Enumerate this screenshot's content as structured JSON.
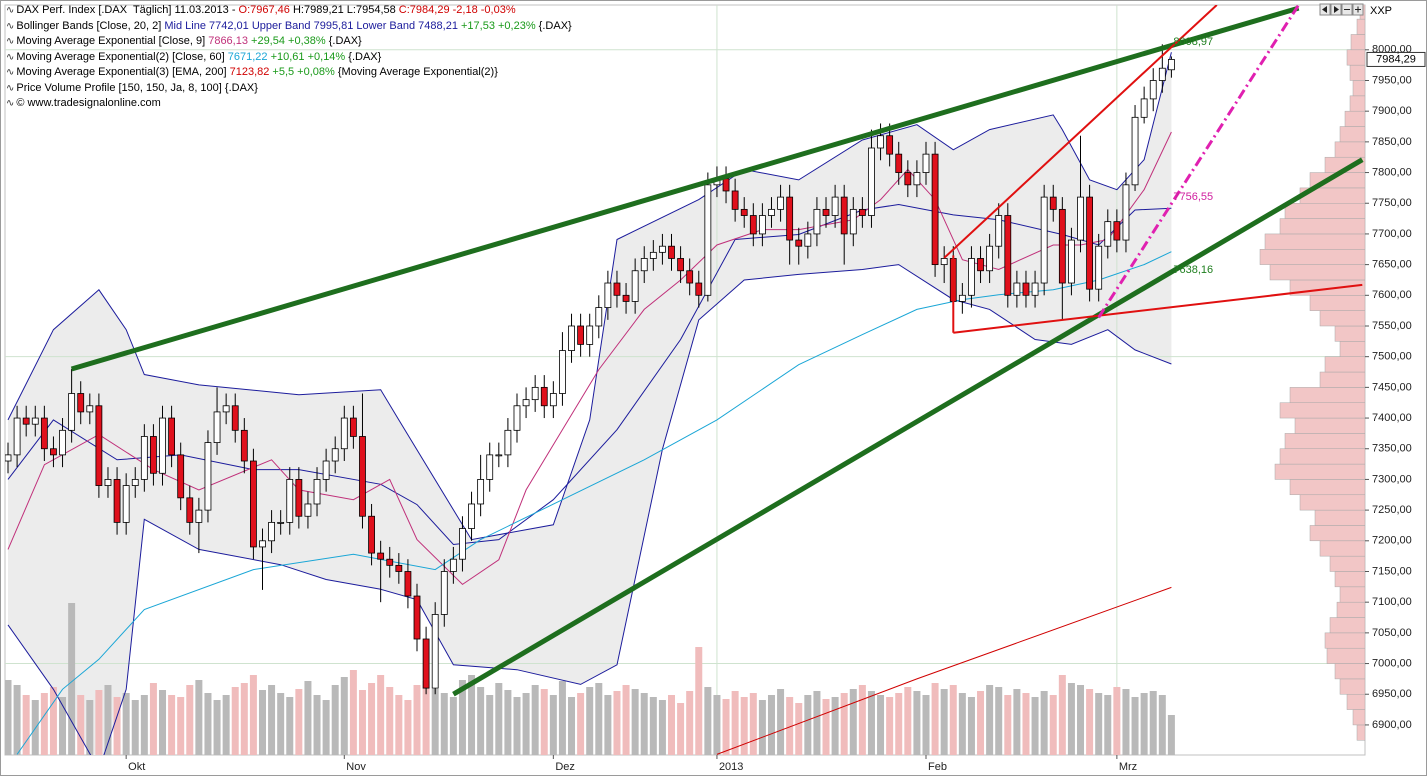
{
  "chart_data": {
    "type": "candlestick",
    "symbol": "XXP",
    "header": [
      [
        {
          "text": "DAX Perf. Index [.DAX  Täglich] 11.03.2013 - ",
          "color": "#000000"
        },
        {
          "text": "O:7967,46 ",
          "color": "#d00000"
        },
        {
          "text": "H:7989,21 L:7954,58 ",
          "color": "#000000"
        },
        {
          "text": "C:7984,29 -2,18 -0,03%",
          "color": "#d00000"
        }
      ],
      [
        {
          "text": "Bollinger Bands [Close, 20, 2] ",
          "color": "#000000"
        },
        {
          "text": "Mid Line 7742,01 Upper Band 7995,81 Lower Band 7488,21",
          "color": "#1c1c9c"
        },
        {
          "text": " +17,53 +0,23%",
          "color": "#1a9a1a"
        },
        {
          "text": " {.DAX}",
          "color": "#000000"
        }
      ],
      [
        {
          "text": "Moving Average Exponential [Close, 9] ",
          "color": "#000000"
        },
        {
          "text": "7866,13",
          "color": "#c0307a"
        },
        {
          "text": " +29,54 +0,38%",
          "color": "#1a9a1a"
        },
        {
          "text": " {.DAX}",
          "color": "#000000"
        }
      ],
      [
        {
          "text": "Moving Average Exponential(2) [Close, 60] ",
          "color": "#000000"
        },
        {
          "text": "7671,22",
          "color": "#1aa6d6"
        },
        {
          "text": " +10,61 +0,14%",
          "color": "#1a9a1a"
        },
        {
          "text": " {.DAX}",
          "color": "#000000"
        }
      ],
      [
        {
          "text": "Moving Average Exponential(3) [EMA, 200] ",
          "color": "#000000"
        },
        {
          "text": "7123,82",
          "color": "#d00000"
        },
        {
          "text": " +5,5 +0,08%",
          "color": "#1a9a1a"
        },
        {
          "text": " {Moving Average Exponential(2)}",
          "color": "#000000"
        }
      ],
      [
        {
          "text": "Price Volume Profile [150, 150, Ja, 8, 100] {.DAX}",
          "color": "#000000"
        }
      ],
      [
        {
          "text": "© www.tradesignalonline.com",
          "color": "#000000"
        }
      ]
    ],
    "up_color": "#ffffff",
    "down_color": "#e0101c",
    "open": [
      7330,
      7340,
      7400,
      7390,
      7400,
      7350,
      7340,
      7380,
      7440,
      7410,
      7420,
      7290,
      7300,
      7230,
      7290,
      7300,
      7370,
      7310,
      7400,
      7340,
      7270,
      7230,
      7250,
      7360,
      7410,
      7420,
      7380,
      7330,
      7190,
      7200,
      7230,
      7230,
      7300,
      7240,
      7260,
      7300,
      7330,
      7350,
      7400,
      7370,
      7240,
      7180,
      7170,
      7160,
      7150,
      7110,
      7040,
      6960,
      7080,
      7150,
      7170,
      7220,
      7260,
      7300,
      7340,
      7340,
      7380,
      7420,
      7430,
      7450,
      7420,
      7440,
      7510,
      7550,
      7520,
      7550,
      7580,
      7620,
      7600,
      7590,
      7640,
      7660,
      7670,
      7680,
      7660,
      7640,
      7620,
      7600,
      7780,
      7790,
      7770,
      7740,
      7730,
      7700,
      7730,
      7740,
      7760,
      7690,
      7680,
      7700,
      7740,
      7730,
      7760,
      7700,
      7740,
      7730,
      7840,
      7860,
      7830,
      7800,
      7780,
      7800,
      7830,
      7650,
      7660,
      7590,
      7600,
      7660,
      7640,
      7680,
      7730,
      7600,
      7620,
      7600,
      7620,
      7760,
      7740,
      7620,
      7690,
      7760,
      7610,
      7680,
      7720,
      7690,
      7780,
      7890,
      7920,
      7950,
      7967.46
    ],
    "high": [
      7360,
      7420,
      7420,
      7420,
      7420,
      7370,
      7400,
      7480,
      7460,
      7440,
      7440,
      7320,
      7320,
      7310,
      7320,
      7390,
      7390,
      7420,
      7420,
      7360,
      7290,
      7270,
      7380,
      7450,
      7440,
      7440,
      7400,
      7350,
      7220,
      7250,
      7250,
      7320,
      7320,
      7280,
      7320,
      7350,
      7370,
      7420,
      7420,
      7440,
      7260,
      7200,
      7190,
      7180,
      7170,
      7130,
      7060,
      7100,
      7170,
      7190,
      7240,
      7280,
      7340,
      7360,
      7360,
      7400,
      7440,
      7450,
      7470,
      7470,
      7460,
      7540,
      7570,
      7570,
      7570,
      7600,
      7640,
      7640,
      7620,
      7660,
      7680,
      7690,
      7700,
      7700,
      7680,
      7660,
      7640,
      7800,
      7810,
      7810,
      7790,
      7760,
      7750,
      7750,
      7760,
      7780,
      7780,
      7710,
      7720,
      7760,
      7760,
      7780,
      7780,
      7760,
      7760,
      7870,
      7880,
      7880,
      7850,
      7820,
      7820,
      7850,
      7850,
      7680,
      7680,
      7620,
      7680,
      7680,
      7700,
      7750,
      7750,
      7640,
      7640,
      7640,
      7780,
      7780,
      7760,
      7710,
      7860,
      7780,
      7700,
      7740,
      7740,
      7800,
      7910,
      7940,
      7970,
      8008.97,
      7989.21
    ],
    "low": [
      7310,
      7320,
      7370,
      7370,
      7330,
      7320,
      7320,
      7360,
      7390,
      7390,
      7270,
      7270,
      7210,
      7210,
      7270,
      7280,
      7290,
      7290,
      7320,
      7250,
      7210,
      7180,
      7230,
      7340,
      7390,
      7360,
      7310,
      7170,
      7120,
      7180,
      7210,
      7210,
      7220,
      7220,
      7240,
      7280,
      7310,
      7330,
      7350,
      7220,
      7160,
      7100,
      7140,
      7130,
      7090,
      7020,
      6950,
      6950,
      7060,
      7130,
      7150,
      7200,
      7240,
      7280,
      7320,
      7320,
      7360,
      7400,
      7410,
      7400,
      7400,
      7420,
      7490,
      7500,
      7500,
      7530,
      7560,
      7580,
      7570,
      7570,
      7620,
      7640,
      7650,
      7640,
      7620,
      7600,
      7580,
      7590,
      7760,
      7750,
      7720,
      7710,
      7680,
      7680,
      7710,
      7720,
      7650,
      7650,
      7660,
      7680,
      7710,
      7710,
      7650,
      7680,
      7710,
      7710,
      7820,
      7810,
      7780,
      7760,
      7760,
      7780,
      7630,
      7620,
      7570,
      7570,
      7580,
      7620,
      7620,
      7660,
      7580,
      7580,
      7580,
      7580,
      7600,
      7720,
      7560,
      7600,
      7670,
      7590,
      7590,
      7660,
      7670,
      7670,
      7770,
      7880,
      7900,
      7930,
      7954.58
    ],
    "close": [
      7340,
      7400,
      7390,
      7400,
      7350,
      7340,
      7380,
      7440,
      7410,
      7420,
      7290,
      7300,
      7230,
      7290,
      7300,
      7370,
      7310,
      7400,
      7340,
      7270,
      7230,
      7250,
      7360,
      7410,
      7420,
      7380,
      7330,
      7190,
      7200,
      7230,
      7230,
      7300,
      7240,
      7260,
      7300,
      7330,
      7350,
      7400,
      7370,
      7240,
      7180,
      7170,
      7160,
      7150,
      7110,
      7040,
      6960,
      7080,
      7150,
      7170,
      7220,
      7260,
      7300,
      7340,
      7340,
      7380,
      7420,
      7430,
      7450,
      7420,
      7440,
      7510,
      7550,
      7520,
      7550,
      7580,
      7620,
      7600,
      7590,
      7640,
      7660,
      7670,
      7680,
      7660,
      7640,
      7620,
      7600,
      7780,
      7790,
      7770,
      7740,
      7730,
      7700,
      7730,
      7740,
      7760,
      7690,
      7680,
      7700,
      7740,
      7730,
      7760,
      7700,
      7740,
      7730,
      7840,
      7860,
      7830,
      7800,
      7780,
      7800,
      7830,
      7650,
      7660,
      7590,
      7600,
      7660,
      7640,
      7680,
      7730,
      7600,
      7620,
      7600,
      7620,
      7760,
      7740,
      7620,
      7690,
      7760,
      7610,
      7680,
      7720,
      7690,
      7780,
      7890,
      7920,
      7950,
      7970,
      7984.29
    ],
    "volume": [
      75,
      70,
      60,
      55,
      62,
      68,
      58,
      152,
      60,
      55,
      65,
      70,
      58,
      62,
      55,
      60,
      72,
      65,
      60,
      58,
      70,
      75,
      62,
      55,
      60,
      68,
      72,
      80,
      65,
      70,
      62,
      58,
      66,
      74,
      60,
      55,
      70,
      78,
      85,
      65,
      72,
      80,
      68,
      60,
      55,
      70,
      74,
      66,
      62,
      58,
      75,
      80,
      68,
      60,
      72,
      65,
      58,
      62,
      70,
      66,
      60,
      74,
      58,
      62,
      68,
      72,
      60,
      64,
      70,
      66,
      62,
      58,
      55,
      60,
      52,
      64,
      108,
      68,
      60,
      56,
      64,
      58,
      62,
      55,
      60,
      66,
      58,
      52,
      60,
      64,
      56,
      58,
      62,
      66,
      70,
      64,
      60,
      58,
      62,
      68,
      64,
      60,
      72,
      66,
      70,
      62,
      58,
      64,
      70,
      68,
      60,
      66,
      62,
      58,
      64,
      60,
      80,
      72,
      70,
      66,
      62,
      60,
      68,
      66,
      58,
      62,
      64,
      60,
      40
    ],
    "volume_up_color": "#b9b9b9",
    "volume_down_color": "#f0bcbc",
    "bollinger": {
      "color": "#1c1c9c",
      "fill": "#ececec",
      "upper": {
        "x": [
          0,
          5,
          10,
          13,
          15,
          21,
          32,
          41,
          43,
          51,
          60,
          64,
          67,
          76,
          81,
          87,
          94,
          100,
          104,
          108,
          115,
          116,
          119,
          122,
          125,
          128
        ],
        "values": [
          7397,
          7544,
          7609,
          7544,
          7471,
          7454,
          7438,
          7446,
          7397,
          7202,
          7226,
          7397,
          7691,
          7756,
          7805,
          7788,
          7853,
          7878,
          7837,
          7870,
          7894,
          7870,
          7788,
          7772,
          7821,
          7996
        ]
      },
      "mid": {
        "x": [
          0,
          5,
          12,
          19,
          27,
          32,
          41,
          45,
          49,
          54,
          60,
          67,
          74,
          80,
          87,
          94,
          98,
          104,
          109,
          116,
          120,
          124,
          128
        ],
        "values": [
          7300,
          7397,
          7332,
          7340,
          7316,
          7316,
          7292,
          7259,
          7194,
          7202,
          7267,
          7381,
          7528,
          7691,
          7699,
          7739,
          7748,
          7731,
          7723,
          7699,
          7682,
          7739,
          7742
        ]
      },
      "lower": {
        "x": [
          0,
          5,
          10,
          13,
          15,
          21,
          30,
          35,
          41,
          45,
          49,
          56,
          63,
          67,
          72,
          76,
          81,
          87,
          94,
          98,
          104,
          108,
          113,
          117,
          121,
          124,
          128
        ],
        "values": [
          7063,
          6958,
          6827,
          6958,
          7235,
          7186,
          7161,
          7137,
          7121,
          7104,
          6998,
          6990,
          6966,
          6998,
          7349,
          7560,
          7625,
          7634,
          7642,
          7650,
          7593,
          7577,
          7528,
          7520,
          7544,
          7511,
          7488
        ]
      }
    },
    "lines": [
      {
        "color": "#c0307a",
        "width": 1,
        "x": [
          0,
          4,
          10,
          16,
          21,
          29,
          32,
          38,
          42,
          45,
          50,
          54,
          57,
          61,
          65,
          70,
          74,
          78,
          83,
          87,
          93,
          96,
          99,
          102,
          105,
          109,
          115,
          118,
          121,
          125,
          128
        ],
        "values": [
          7186,
          7324,
          7373,
          7316,
          7283,
          7332,
          7283,
          7267,
          7300,
          7202,
          7129,
          7169,
          7283,
          7381,
          7479,
          7577,
          7625,
          7682,
          7707,
          7707,
          7723,
          7756,
          7805,
          7756,
          7658,
          7642,
          7682,
          7682,
          7691,
          7772,
          7866
        ]
      },
      {
        "color": "#1aa6d6",
        "width": 1,
        "x": [
          1,
          6,
          10,
          15,
          27,
          38,
          47,
          52,
          61,
          70,
          78,
          87,
          94,
          100,
          105,
          109,
          115,
          120,
          125,
          128
        ],
        "values": [
          6852,
          6958,
          7007,
          7088,
          7153,
          7178,
          7153,
          7202,
          7267,
          7332,
          7397,
          7487,
          7536,
          7577,
          7593,
          7601,
          7609,
          7625,
          7650,
          7671
        ]
      },
      {
        "color": "#d00000",
        "width": 1,
        "x": [
          78,
          100,
          128
        ],
        "values": [
          6852,
          6975,
          7124
        ]
      }
    ],
    "trendlines": [
      {
        "color": "#1e6e1e",
        "width": 5,
        "dash": false,
        "x": [
          7,
          142
        ],
        "values": [
          7480,
          8068
        ]
      },
      {
        "color": "#1e6e1e",
        "width": 5,
        "dash": false,
        "x": [
          49,
          149
        ],
        "values": [
          6950,
          7821
        ]
      },
      {
        "color": "#e01010",
        "width": 2,
        "dash": false,
        "x": [
          103,
          133
        ],
        "values": [
          7661,
          8073
        ]
      },
      {
        "color": "#e01010",
        "width": 2,
        "dash": false,
        "x": [
          104,
          149
        ],
        "values": [
          7539,
          7617
        ]
      },
      {
        "color": "#e01010",
        "width": 2,
        "dash": false,
        "x": [
          104,
          104
        ],
        "values": [
          7539,
          7665
        ]
      },
      {
        "color": "#e020b0",
        "width": 3,
        "dash": true,
        "x": [
          120,
          142
        ],
        "values": [
          7564,
          8073
        ]
      }
    ],
    "profile": {
      "color": "#f2c6c6",
      "edge_color": "#a8a8a8",
      "bins": [
        6875,
        6900,
        6925,
        6950,
        6975,
        7000,
        7025,
        7050,
        7075,
        7100,
        7125,
        7150,
        7175,
        7200,
        7225,
        7250,
        7275,
        7300,
        7325,
        7350,
        7375,
        7400,
        7425,
        7450,
        7475,
        7500,
        7525,
        7550,
        7575,
        7600,
        7625,
        7650,
        7675,
        7700,
        7725,
        7750,
        7775,
        7800,
        7825,
        7850,
        7875,
        7900,
        7925,
        7950,
        7975,
        8000,
        8025,
        8050,
        8075
      ],
      "counts": [
        8,
        12,
        18,
        25,
        30,
        38,
        40,
        35,
        28,
        25,
        30,
        35,
        45,
        55,
        50,
        65,
        75,
        90,
        85,
        80,
        70,
        85,
        75,
        45,
        40,
        25,
        30,
        45,
        55,
        75,
        95,
        105,
        100,
        85,
        80,
        65,
        55,
        40,
        30,
        25,
        20,
        15,
        12,
        15,
        18,
        14,
        8,
        5
      ]
    },
    "annotations": [
      {
        "value": 8008.97,
        "label": "8008,97",
        "color": "#1e7e1e",
        "boxed": false
      },
      {
        "value": 7756.55,
        "label": "7756,55",
        "color": "#d020a0",
        "boxed": false
      },
      {
        "value": 7638.16,
        "label": "7638,16",
        "color": "#1e7e1e",
        "boxed": false
      },
      {
        "value": 7984.29,
        "label": "7984,29",
        "color": "#000000",
        "boxed": true
      }
    ],
    "xlim": [
      -0.33,
      149.3
    ],
    "ylim": [
      6851,
      8073
    ],
    "xticks": [
      {
        "value": 13,
        "label": "Okt"
      },
      {
        "value": 37,
        "label": "Nov"
      },
      {
        "value": 60,
        "label": "Dez"
      },
      {
        "value": 78,
        "label": "2013"
      },
      {
        "value": 101,
        "label": "Feb"
      },
      {
        "value": 122,
        "label": "Mrz"
      }
    ],
    "yticks": [
      {
        "value": 6900,
        "label": "6900,00"
      },
      {
        "value": 6950,
        "label": "6950,00"
      },
      {
        "value": 7000,
        "label": "7000,00"
      },
      {
        "value": 7050,
        "label": "7050,00"
      },
      {
        "value": 7100,
        "label": "7100,00"
      },
      {
        "value": 7150,
        "label": "7150,00"
      },
      {
        "value": 7200,
        "label": "7200,00"
      },
      {
        "value": 7250,
        "label": "7250,00"
      },
      {
        "value": 7300,
        "label": "7300,00"
      },
      {
        "value": 7350,
        "label": "7350,00"
      },
      {
        "value": 7400,
        "label": "7400,00"
      },
      {
        "value": 7450,
        "label": "7450,00"
      },
      {
        "value": 7500,
        "label": "7500,00"
      },
      {
        "value": 7550,
        "label": "7550,00"
      },
      {
        "value": 7600,
        "label": "7600,00"
      },
      {
        "value": 7650,
        "label": "7650,00"
      },
      {
        "value": 7700,
        "label": "7700,00"
      },
      {
        "value": 7750,
        "label": "7750,00"
      },
      {
        "value": 7800,
        "label": "7800,00"
      },
      {
        "value": 7850,
        "label": "7850,00"
      },
      {
        "value": 7900,
        "label": "7900,00"
      },
      {
        "value": 7950,
        "label": "7950,00"
      },
      {
        "value": 8000,
        "label": "8000,00"
      }
    ],
    "ygrid": [
      7000,
      7500,
      8000
    ],
    "xgrid": [
      78,
      122
    ]
  }
}
